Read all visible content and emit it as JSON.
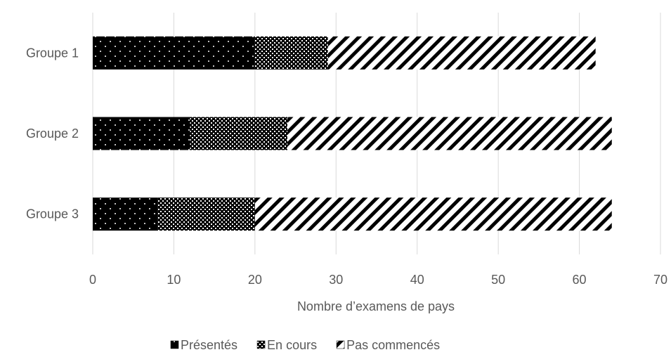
{
  "chart_data": {
    "type": "bar",
    "orientation": "horizontal",
    "stacked": true,
    "title": "",
    "xlabel": "Nombre d’examens de pays",
    "ylabel": "",
    "categories": [
      "Groupe 1",
      "Groupe 2",
      "Groupe 3"
    ],
    "series": [
      {
        "name": "Présentés",
        "values": [
          20,
          12,
          8
        ],
        "pattern": "dots-on-black"
      },
      {
        "name": "En cours",
        "values": [
          9,
          12,
          12
        ],
        "pattern": "crosshatch"
      },
      {
        "name": "Pas commencés",
        "values": [
          33,
          40,
          44
        ],
        "pattern": "diagonal-stripes"
      }
    ],
    "xlim": [
      0,
      70
    ],
    "xticks": [
      "0",
      "10",
      "20",
      "30",
      "40",
      "50",
      "60",
      "70"
    ],
    "grid": "vertical",
    "legend": "bottom",
    "colors": {
      "bar": "#000000",
      "grid": "#d9d9d9",
      "text": "#595959"
    }
  }
}
